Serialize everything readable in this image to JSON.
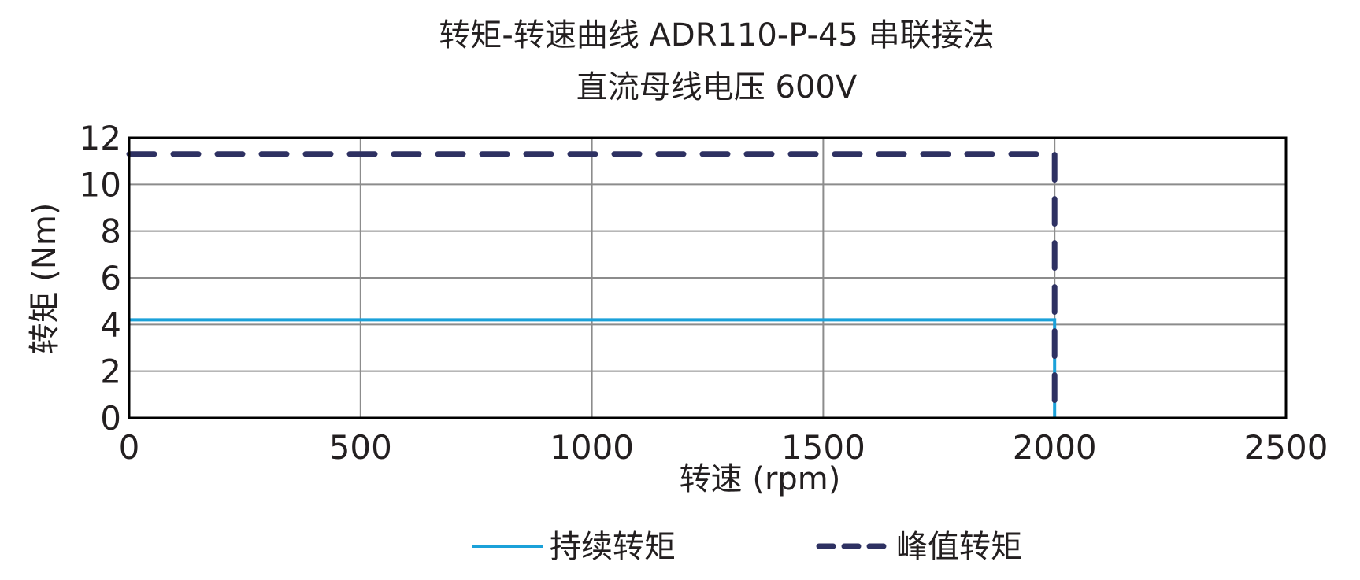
{
  "chart_data": {
    "type": "line",
    "title": "转矩-转速曲线 ADR110-P-45 串联接法",
    "subtitle": "直流母线电压 600V",
    "xlabel": "转速 (rpm)",
    "ylabel": "转矩 (Nm)",
    "xlim": [
      0,
      2500
    ],
    "ylim": [
      0,
      12
    ],
    "xticks": [
      0,
      500,
      1000,
      1500,
      2000,
      2500
    ],
    "yticks": [
      0,
      2,
      4,
      6,
      8,
      10,
      12
    ],
    "grid": true,
    "legend_position": "bottom",
    "series": [
      {
        "name": "持续转矩",
        "style": "solid",
        "color": "#1ba1d9",
        "x": [
          0,
          2000,
          2000
        ],
        "y": [
          4.2,
          4.2,
          0
        ]
      },
      {
        "name": "峰值转矩",
        "style": "dashed",
        "color": "#2e3162",
        "x": [
          0,
          2000,
          2000
        ],
        "y": [
          11.3,
          11.3,
          0
        ]
      }
    ]
  }
}
